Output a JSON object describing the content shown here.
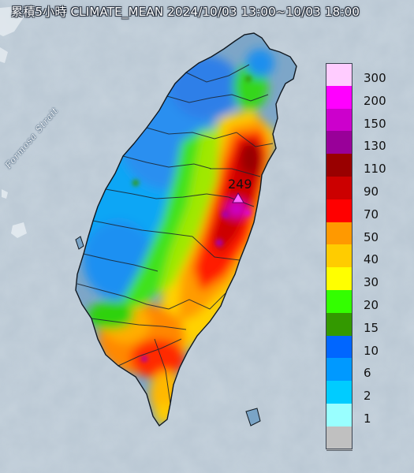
{
  "map": {
    "title": "累積5小時 CLIMATE_MEAN 2024/10/03 13:00~10/03 18:00",
    "strait_label": "Formosa Strait",
    "max_value_label": "249",
    "colors": {
      "ocean": "#b9c7d3",
      "land_light": "#7da6c8",
      "county_border": "#1b2530"
    }
  },
  "legend": {
    "entries": [
      {
        "label": "300",
        "color": "#ffccff"
      },
      {
        "label": "200",
        "color": "#ff00ff"
      },
      {
        "label": "150",
        "color": "#cc00cc"
      },
      {
        "label": "130",
        "color": "#990099"
      },
      {
        "label": "110",
        "color": "#990000"
      },
      {
        "label": "90",
        "color": "#cc0000"
      },
      {
        "label": "70",
        "color": "#ff0000"
      },
      {
        "label": "50",
        "color": "#ff9900"
      },
      {
        "label": "40",
        "color": "#ffcc00"
      },
      {
        "label": "30",
        "color": "#ffff00"
      },
      {
        "label": "20",
        "color": "#33ff00"
      },
      {
        "label": "15",
        "color": "#339900"
      },
      {
        "label": "10",
        "color": "#0066ff"
      },
      {
        "label": "6",
        "color": "#0099ff"
      },
      {
        "label": "2",
        "color": "#00ccff"
      },
      {
        "label": "1",
        "color": "#99ffff"
      },
      {
        "label": "",
        "color": "#c0c0c0"
      }
    ]
  }
}
